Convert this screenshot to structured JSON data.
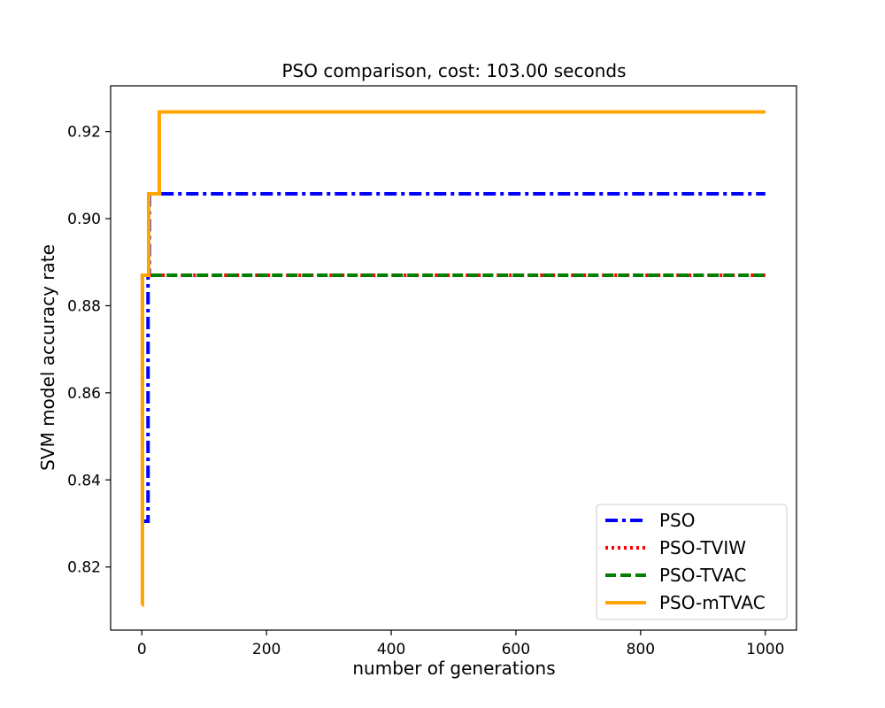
{
  "chart_data": {
    "type": "line",
    "title": "PSO comparison, cost: 103.00 seconds",
    "xlabel": "number of generations",
    "ylabel": "SVM model accuracy rate",
    "xlim": [
      -50,
      1050
    ],
    "ylim": [
      0.8055,
      0.9305
    ],
    "x_ticks": [
      0,
      200,
      400,
      600,
      800,
      1000
    ],
    "y_ticks": [
      0.82,
      0.84,
      0.86,
      0.88,
      0.9,
      0.92
    ],
    "x_tick_labels": [
      "0",
      "200",
      "400",
      "600",
      "800",
      "1000"
    ],
    "y_tick_labels": [
      "0.82",
      "0.84",
      "0.86",
      "0.88",
      "0.90",
      "0.92"
    ],
    "grid": false,
    "legend_position": "lower-right",
    "series": [
      {
        "name": "PSO",
        "color": "#0000ff",
        "style": "dashdot",
        "points": [
          [
            0,
            0.8305
          ],
          [
            10,
            0.8305
          ],
          [
            10,
            0.887
          ],
          [
            12,
            0.887
          ],
          [
            12,
            0.9057
          ],
          [
            1000,
            0.9057
          ]
        ]
      },
      {
        "name": "PSO-TVIW",
        "color": "#ff0000",
        "style": "dotted",
        "points": [
          [
            0,
            0.8305
          ],
          [
            1,
            0.8305
          ],
          [
            1,
            0.887
          ],
          [
            1000,
            0.887
          ]
        ]
      },
      {
        "name": "PSO-TVAC",
        "color": "#008000",
        "style": "dashed",
        "points": [
          [
            0,
            0.8305
          ],
          [
            1,
            0.8305
          ],
          [
            1,
            0.887
          ],
          [
            1000,
            0.887
          ]
        ]
      },
      {
        "name": "PSO-mTVAC",
        "color": "#ffa500",
        "style": "solid",
        "points": [
          [
            0,
            0.8113
          ],
          [
            1,
            0.8113
          ],
          [
            1,
            0.887
          ],
          [
            11,
            0.887
          ],
          [
            11,
            0.9057
          ],
          [
            28,
            0.9057
          ],
          [
            28,
            0.9245
          ],
          [
            1000,
            0.9245
          ]
        ]
      }
    ]
  }
}
